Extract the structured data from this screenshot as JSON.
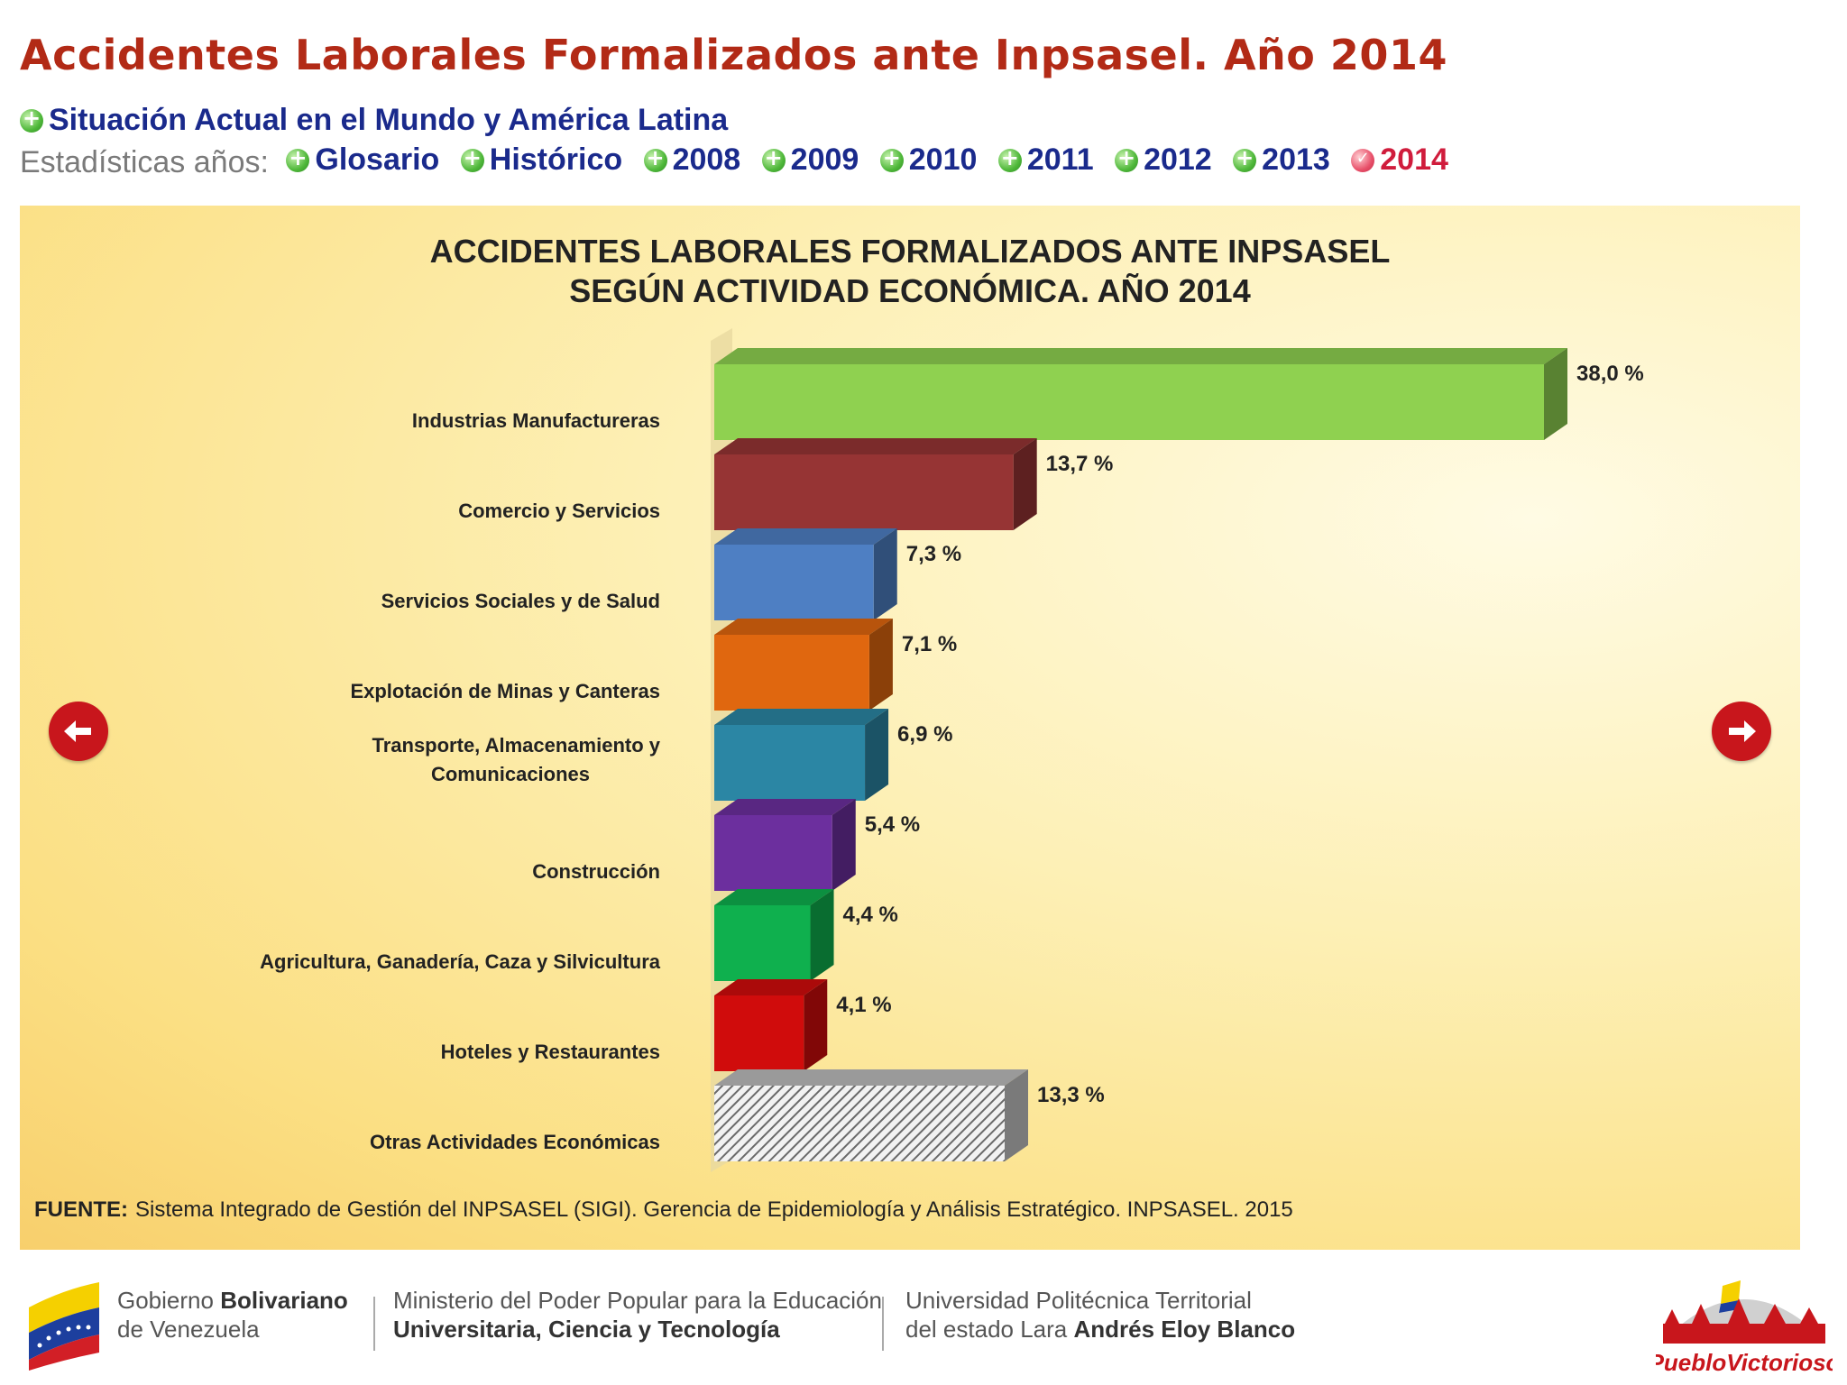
{
  "header": {
    "title": "Accidentes Laborales Formalizados ante Inpsasel. Año 2014",
    "nav_world": "Situación Actual en el Mundo y América Latina",
    "stats_label": "Estadísticas años:",
    "links": [
      "Glosario",
      "Histórico",
      "2008",
      "2009",
      "2010",
      "2011",
      "2012",
      "2013",
      "2014"
    ],
    "active_link": "2014"
  },
  "chart_data": {
    "type": "bar",
    "orientation": "horizontal",
    "title_line1": "ACCIDENTES LABORALES FORMALIZADOS ANTE INPSASEL",
    "title_line2": "SEGÚN ACTIVIDAD ECONÓMICA. AÑO 2014",
    "unit": "%",
    "categories": [
      "Industrias Manufactureras",
      "Comercio y Servicios",
      "Servicios Sociales y de Salud",
      "Explotación de Minas y Canteras",
      [
        "Transporte, Almacenamiento y",
        "Comunicaciones"
      ],
      "Construcción",
      "Agricultura, Ganadería, Caza y Silvicultura",
      "Hoteles y Restaurantes",
      "Otras Actividades Económicas"
    ],
    "values": [
      38.0,
      13.7,
      7.3,
      7.1,
      6.9,
      5.4,
      4.4,
      4.1,
      13.3
    ],
    "value_labels": [
      "38,0 %",
      "13,7 %",
      "7,3 %",
      "7,1 %",
      "6,9 %",
      "5,4 %",
      "4,4 %",
      "4,1 %",
      "13,3 %"
    ],
    "colors": [
      "#8fd150",
      "#963434",
      "#4e7fc3",
      "#e0670f",
      "#2b86a4",
      "#6c2f9e",
      "#0fb04e",
      "#d00c0c",
      "hatch"
    ],
    "source_label": "FUENTE:",
    "source_text": "Sistema Integrado de Gestión del INPSASEL (SIGI). Gerencia de Epidemiología y Análisis Estratégico. INPSASEL. 2015"
  },
  "navigation": {
    "prev_icon": "arrow-left-icon",
    "next_icon": "arrow-right-icon"
  },
  "footer": {
    "gov_line1": "Gobierno",
    "gov_line1_bold": "Bolivariano",
    "gov_line2": "de Venezuela",
    "ministry_line1": "Ministerio del Poder Popular para la Educación",
    "ministry_line2": "Universitaria, Ciencia y Tecnología",
    "univ_line1": "Universidad Politécnica Territorial",
    "univ_line2": "del estado Lara",
    "univ_line2_bold": "Andrés Eloy Blanco",
    "logo_text": "PuebloVictorioso"
  }
}
